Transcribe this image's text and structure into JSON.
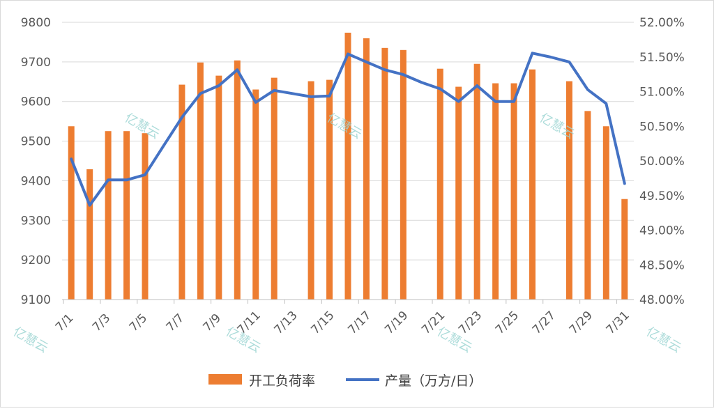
{
  "chart_data": {
    "type": "bar+line",
    "x_labels": [
      "7/1",
      "7/3",
      "7/5",
      "7/7",
      "7/9",
      "7/11",
      "7/13",
      "7/15",
      "7/17",
      "7/19",
      "7/21",
      "7/23",
      "7/25",
      "7/27",
      "7/29",
      "7/31"
    ],
    "days": [
      1,
      2,
      3,
      4,
      5,
      6,
      7,
      8,
      9,
      10,
      11,
      12,
      13,
      14,
      15,
      16,
      17,
      18,
      19,
      20,
      21,
      22,
      23,
      24,
      25,
      26,
      27,
      28,
      29,
      30,
      31
    ],
    "left_axis": {
      "min": 9100,
      "max": 9800,
      "step": 100,
      "ticks": [
        "9100",
        "9200",
        "9300",
        "9400",
        "9500",
        "9600",
        "9700",
        "9800"
      ]
    },
    "right_axis": {
      "min": 48.0,
      "max": 52.0,
      "step": 0.5,
      "ticks": [
        "48.00%",
        "48.50%",
        "49.00%",
        "49.50%",
        "50.00%",
        "50.50%",
        "51.00%",
        "51.50%",
        "52.00%"
      ]
    },
    "series": [
      {
        "name": "开工负荷率",
        "type": "bar",
        "axis": "right",
        "color": "#ED7D31",
        "values": [
          50.5,
          49.88,
          50.43,
          50.43,
          50.4,
          null,
          51.1,
          51.42,
          51.23,
          51.45,
          51.03,
          51.2,
          null,
          51.15,
          51.17,
          51.85,
          51.77,
          51.63,
          51.6,
          null,
          51.33,
          51.07,
          51.4,
          51.12,
          51.12,
          51.32,
          null,
          51.15,
          50.72,
          50.5,
          49.45
        ]
      },
      {
        "name": "产量（万方/日）",
        "type": "line",
        "axis": "left",
        "color": "#4472C4",
        "values": [
          9455,
          9338,
          9402,
          9402,
          9415,
          9488,
          9560,
          9620,
          9640,
          9680,
          9598,
          9628,
          9620,
          9612,
          9614,
          9720,
          9700,
          9680,
          9668,
          9648,
          9632,
          9600,
          9640,
          9600,
          9600,
          9722,
          9712,
          9700,
          9630,
          9595,
          9393
        ]
      }
    ],
    "legend": {
      "position": "bottom",
      "items": [
        "开工负荷率",
        "产量（万方/日）"
      ]
    },
    "grid": "horizontal"
  },
  "watermark": {
    "text": "亿慧云",
    "color": "#9fd6d4"
  }
}
